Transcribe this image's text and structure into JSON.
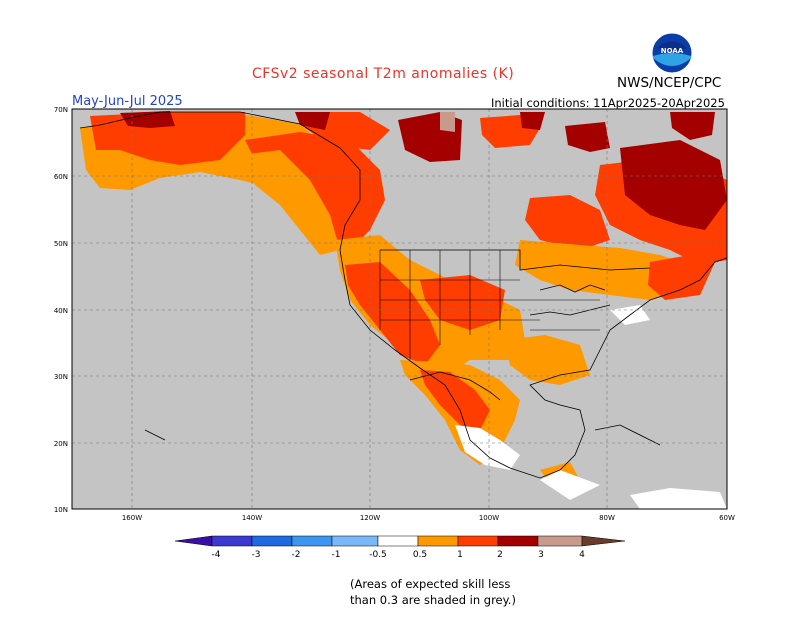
{
  "header": {
    "title": "CFSv2 seasonal T2m anomalies (K)",
    "season": "May-Jun-Jul 2025",
    "initial_conditions": "Initial conditions: 11Apr2025-20Apr2025",
    "agency": "NWS/NCEP/CPC",
    "logo_text": "NOAA"
  },
  "map": {
    "lat_labels": [
      "70N",
      "60N",
      "50N",
      "40N",
      "30N",
      "20N",
      "10N"
    ],
    "lon_labels": [
      "160W",
      "140W",
      "120W",
      "100W",
      "80W",
      "60W"
    ],
    "colors": {
      "land_grey": "#c8c8c8",
      "ocean_grey": "#c0c0c0",
      "orange": "#ff9900",
      "red_orange": "#ff3d00",
      "dark_red": "#a50000",
      "pink": "#c89a8c",
      "white": "#ffffff"
    }
  },
  "legend": {
    "labels": [
      "-4",
      "-3",
      "-2",
      "-1",
      "-0.5",
      "0.5",
      "1",
      "2",
      "3",
      "4"
    ],
    "colors": [
      "#3a0fa8",
      "#3a3ad0",
      "#1e6ae0",
      "#3c96f0",
      "#78b8f8",
      "#ffffff",
      "#ff9900",
      "#ff3d00",
      "#a50000",
      "#c89a8c",
      "#6a3a2a"
    ]
  },
  "footnote": {
    "line1": "(Areas of expected skill less",
    "line2": "than 0.3 are shaded in grey.)"
  }
}
